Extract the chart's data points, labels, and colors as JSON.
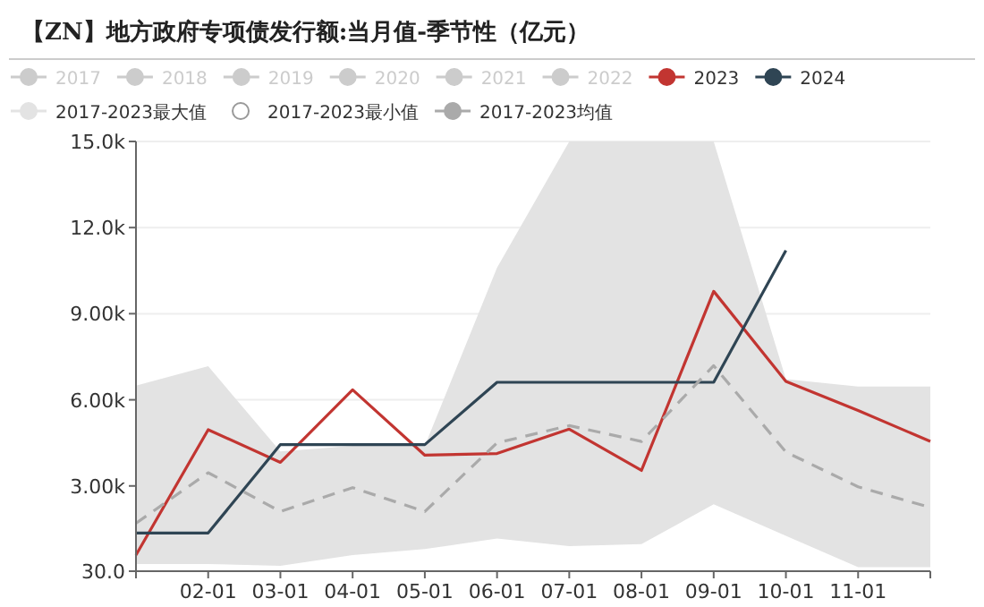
{
  "chart_data": {
    "type": "line",
    "title": "【ZN】地方政府专项债发行额:当月值-季节性（亿元）",
    "categories": [
      null,
      "02-01",
      "03-01",
      "04-01",
      "05-01",
      "06-01",
      "07-01",
      "08-01",
      "09-01",
      "10-01",
      "11-01",
      null
    ],
    "series": [
      {
        "name": "2017",
        "color": "#cccccc",
        "values": [
          null,
          null,
          null,
          null,
          null,
          null,
          null,
          null,
          null,
          null,
          null,
          null
        ]
      },
      {
        "name": "2018",
        "color": "#cccccc",
        "values": [
          null,
          null,
          null,
          null,
          null,
          null,
          null,
          null,
          null,
          null,
          null,
          null
        ]
      },
      {
        "name": "2019",
        "color": "#cccccc",
        "values": [
          null,
          null,
          null,
          null,
          null,
          null,
          null,
          null,
          null,
          null,
          null,
          null
        ]
      },
      {
        "name": "2020",
        "color": "#cccccc",
        "values": [
          null,
          null,
          null,
          null,
          null,
          null,
          null,
          null,
          null,
          null,
          null,
          null
        ]
      },
      {
        "name": "2021",
        "color": "#cccccc",
        "values": [
          null,
          null,
          null,
          null,
          null,
          null,
          null,
          null,
          null,
          null,
          null,
          null
        ]
      },
      {
        "name": "2022",
        "color": "#cccccc",
        "values": [
          null,
          null,
          null,
          null,
          null,
          null,
          null,
          null,
          null,
          null,
          null,
          null
        ]
      },
      {
        "name": "2023",
        "color": "#c23531",
        "values": [
          590,
          4960,
          3820,
          6350,
          4070,
          4130,
          4980,
          3540,
          9780,
          6640,
          5630,
          4550
        ]
      },
      {
        "name": "2024",
        "color": "#2f4554",
        "values": [
          1360,
          1360,
          4440,
          4440,
          4440,
          6610,
          6610,
          6610,
          6610,
          11200,
          null,
          null
        ]
      },
      {
        "name": "2017-2023最大值",
        "type": "area",
        "color": "#e3e3e3",
        "values": [
          6490,
          7170,
          4200,
          4400,
          4400,
          10600,
          15000,
          15000,
          15000,
          6720,
          6460,
          6460
        ]
      },
      {
        "name": "2017-2023最小值",
        "type": "area",
        "color": "#ffffff",
        "values": [
          280,
          280,
          220,
          590,
          800,
          1170,
          900,
          970,
          2360,
          1260,
          170,
          170
        ]
      },
      {
        "name": "2017-2023均值",
        "color": "#aaaaaa",
        "line_style": "dashed",
        "values": [
          1700,
          3460,
          2110,
          2940,
          2110,
          4500,
          5100,
          4550,
          7190,
          4180,
          2970,
          2250
        ]
      }
    ],
    "ylim": [
      30,
      15000
    ],
    "yticks": [
      {
        "value": 30,
        "label": "30.0"
      },
      {
        "value": 3000,
        "label": "3.00k"
      },
      {
        "value": 6000,
        "label": "6.00k"
      },
      {
        "value": 9000,
        "label": "9.00k"
      },
      {
        "value": 12000,
        "label": "12.0k"
      },
      {
        "value": 15000,
        "label": "15.0k"
      }
    ],
    "grid": "y",
    "legend": "top",
    "marker": "none"
  }
}
